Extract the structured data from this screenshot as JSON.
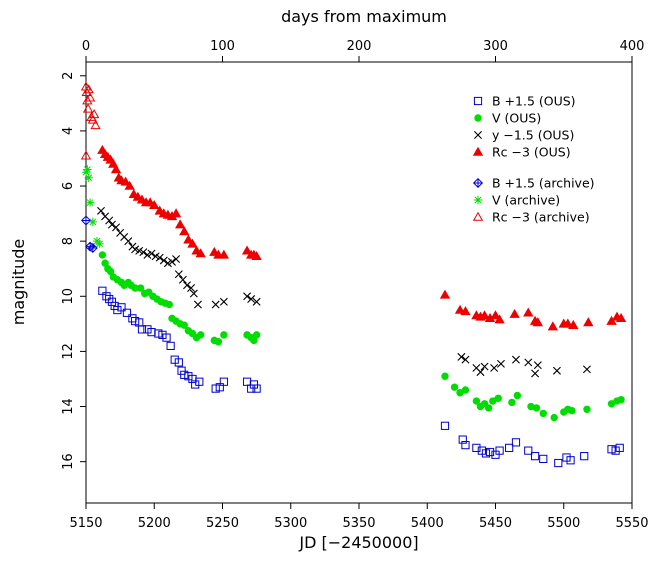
{
  "chart_data": {
    "type": "scatter",
    "xlabel": "JD [−2450000]",
    "x2label": "days from maximum",
    "ylabel": "magnitude",
    "xlim": [
      5150,
      5550
    ],
    "ylim": [
      17.5,
      1.5
    ],
    "y_inverted": true,
    "x_ticks": [
      "5150",
      "5200",
      "5250",
      "5300",
      "5350",
      "5400",
      "5450",
      "5500",
      "5550"
    ],
    "x2_ticks": [
      "0",
      "100",
      "200",
      "300",
      "400"
    ],
    "x2_offset": 5150,
    "y_ticks": [
      "2",
      "4",
      "6",
      "8",
      "10",
      "12",
      "14",
      "16"
    ],
    "grid": false,
    "legend_position": "top-right",
    "series": [
      {
        "name": "B +1.5 (OUS)",
        "marker": "square-open",
        "color": "#0000cc",
        "legend_group": 0,
        "points": [
          [
            5162,
            9.8
          ],
          [
            5165,
            10.0
          ],
          [
            5167,
            10.1
          ],
          [
            5169,
            10.2
          ],
          [
            5171,
            10.35
          ],
          [
            5173,
            10.5
          ],
          [
            5176,
            10.4
          ],
          [
            5180,
            10.6
          ],
          [
            5184,
            10.8
          ],
          [
            5186,
            10.9
          ],
          [
            5189,
            10.95
          ],
          [
            5191,
            11.2
          ],
          [
            5195,
            11.2
          ],
          [
            5198,
            11.3
          ],
          [
            5203,
            11.35
          ],
          [
            5206,
            11.4
          ],
          [
            5209,
            11.5
          ],
          [
            5212,
            11.8
          ],
          [
            5215,
            12.3
          ],
          [
            5218,
            12.4
          ],
          [
            5220,
            12.7
          ],
          [
            5222,
            12.85
          ],
          [
            5225,
            12.9
          ],
          [
            5228,
            13.0
          ],
          [
            5230,
            13.2
          ],
          [
            5233,
            13.1
          ],
          [
            5245,
            13.35
          ],
          [
            5248,
            13.3
          ],
          [
            5251,
            13.1
          ],
          [
            5268,
            13.1
          ],
          [
            5271,
            13.35
          ],
          [
            5273,
            13.2
          ],
          [
            5275,
            13.35
          ],
          [
            5413,
            14.7
          ],
          [
            5426,
            15.2
          ],
          [
            5428,
            15.4
          ],
          [
            5436,
            15.5
          ],
          [
            5440,
            15.6
          ],
          [
            5443,
            15.7
          ],
          [
            5446,
            15.65
          ],
          [
            5450,
            15.75
          ],
          [
            5453,
            15.6
          ],
          [
            5460,
            15.5
          ],
          [
            5465,
            15.3
          ],
          [
            5474,
            15.6
          ],
          [
            5479,
            15.8
          ],
          [
            5485,
            15.9
          ],
          [
            5496,
            16.05
          ],
          [
            5502,
            15.85
          ],
          [
            5505,
            15.95
          ],
          [
            5515,
            15.8
          ],
          [
            5535,
            15.55
          ],
          [
            5538,
            15.6
          ],
          [
            5541,
            15.5
          ]
        ]
      },
      {
        "name": "V (OUS)",
        "marker": "circle-filled",
        "color": "#00dd00",
        "legend_group": 0,
        "points": [
          [
            5162,
            8.5
          ],
          [
            5164,
            8.8
          ],
          [
            5166,
            9.0
          ],
          [
            5168,
            9.1
          ],
          [
            5170,
            9.3
          ],
          [
            5173,
            9.4
          ],
          [
            5176,
            9.5
          ],
          [
            5178,
            9.6
          ],
          [
            5181,
            9.5
          ],
          [
            5183,
            9.6
          ],
          [
            5186,
            9.7
          ],
          [
            5190,
            9.7
          ],
          [
            5193,
            9.9
          ],
          [
            5196,
            9.85
          ],
          [
            5199,
            10.0
          ],
          [
            5202,
            10.1
          ],
          [
            5205,
            10.2
          ],
          [
            5208,
            10.25
          ],
          [
            5211,
            10.3
          ],
          [
            5213,
            10.8
          ],
          [
            5216,
            10.9
          ],
          [
            5219,
            11.0
          ],
          [
            5222,
            11.05
          ],
          [
            5225,
            11.25
          ],
          [
            5228,
            11.35
          ],
          [
            5231,
            11.5
          ],
          [
            5234,
            11.4
          ],
          [
            5244,
            11.6
          ],
          [
            5247,
            11.65
          ],
          [
            5251,
            11.4
          ],
          [
            5268,
            11.4
          ],
          [
            5271,
            11.5
          ],
          [
            5273,
            11.6
          ],
          [
            5275,
            11.4
          ],
          [
            5413,
            12.9
          ],
          [
            5420,
            13.3
          ],
          [
            5424,
            13.5
          ],
          [
            5428,
            13.4
          ],
          [
            5436,
            13.8
          ],
          [
            5439,
            14.0
          ],
          [
            5442,
            13.9
          ],
          [
            5445,
            14.05
          ],
          [
            5448,
            13.8
          ],
          [
            5452,
            13.7
          ],
          [
            5462,
            13.85
          ],
          [
            5466,
            13.6
          ],
          [
            5476,
            14.0
          ],
          [
            5480,
            14.05
          ],
          [
            5485,
            14.25
          ],
          [
            5493,
            14.4
          ],
          [
            5500,
            14.2
          ],
          [
            5503,
            14.1
          ],
          [
            5506,
            14.15
          ],
          [
            5517,
            14.1
          ],
          [
            5535,
            13.9
          ],
          [
            5539,
            13.8
          ],
          [
            5542,
            13.75
          ]
        ]
      },
      {
        "name": "y −1.5 (OUS)",
        "marker": "x",
        "color": "#000000",
        "legend_group": 0,
        "points": [
          [
            5161,
            6.9
          ],
          [
            5164,
            7.1
          ],
          [
            5167,
            7.25
          ],
          [
            5169,
            7.4
          ],
          [
            5172,
            7.5
          ],
          [
            5175,
            7.7
          ],
          [
            5178,
            7.85
          ],
          [
            5181,
            8.0
          ],
          [
            5184,
            8.2
          ],
          [
            5186,
            8.3
          ],
          [
            5189,
            8.35
          ],
          [
            5192,
            8.4
          ],
          [
            5195,
            8.5
          ],
          [
            5198,
            8.45
          ],
          [
            5201,
            8.55
          ],
          [
            5204,
            8.6
          ],
          [
            5207,
            8.7
          ],
          [
            5210,
            8.8
          ],
          [
            5213,
            8.75
          ],
          [
            5216,
            8.65
          ],
          [
            5218,
            9.2
          ],
          [
            5221,
            9.4
          ],
          [
            5224,
            9.6
          ],
          [
            5227,
            9.7
          ],
          [
            5229,
            9.9
          ],
          [
            5232,
            10.3
          ],
          [
            5245,
            10.3
          ],
          [
            5251,
            10.2
          ],
          [
            5268,
            10.0
          ],
          [
            5271,
            10.1
          ],
          [
            5275,
            10.2
          ],
          [
            5425,
            12.2
          ],
          [
            5428,
            12.3
          ],
          [
            5436,
            12.6
          ],
          [
            5439,
            12.75
          ],
          [
            5442,
            12.55
          ],
          [
            5449,
            12.6
          ],
          [
            5454,
            12.45
          ],
          [
            5465,
            12.3
          ],
          [
            5474,
            12.4
          ],
          [
            5479,
            12.8
          ],
          [
            5481,
            12.5
          ],
          [
            5495,
            12.7
          ],
          [
            5517,
            12.65
          ]
        ]
      },
      {
        "name": "Rc −3 (OUS)",
        "marker": "triangle-filled",
        "color": "#ee0000",
        "legend_group": 0,
        "points": [
          [
            5162,
            4.7
          ],
          [
            5164,
            4.85
          ],
          [
            5166,
            4.95
          ],
          [
            5168,
            5.05
          ],
          [
            5170,
            5.2
          ],
          [
            5172,
            5.4
          ],
          [
            5174,
            5.7
          ],
          [
            5176,
            5.8
          ],
          [
            5179,
            5.85
          ],
          [
            5182,
            6.0
          ],
          [
            5185,
            6.3
          ],
          [
            5188,
            6.4
          ],
          [
            5191,
            6.5
          ],
          [
            5194,
            6.6
          ],
          [
            5197,
            6.6
          ],
          [
            5200,
            6.7
          ],
          [
            5204,
            6.9
          ],
          [
            5207,
            7.0
          ],
          [
            5210,
            7.05
          ],
          [
            5213,
            7.1
          ],
          [
            5216,
            7.0
          ],
          [
            5219,
            7.4
          ],
          [
            5222,
            7.65
          ],
          [
            5225,
            7.95
          ],
          [
            5228,
            8.1
          ],
          [
            5231,
            8.35
          ],
          [
            5234,
            8.45
          ],
          [
            5244,
            8.4
          ],
          [
            5247,
            8.5
          ],
          [
            5251,
            8.5
          ],
          [
            5268,
            8.35
          ],
          [
            5271,
            8.5
          ],
          [
            5273,
            8.5
          ],
          [
            5275,
            8.55
          ],
          [
            5413,
            9.95
          ],
          [
            5424,
            10.5
          ],
          [
            5428,
            10.55
          ],
          [
            5436,
            10.7
          ],
          [
            5439,
            10.75
          ],
          [
            5442,
            10.7
          ],
          [
            5446,
            10.8
          ],
          [
            5450,
            10.7
          ],
          [
            5453,
            10.85
          ],
          [
            5464,
            10.65
          ],
          [
            5474,
            10.6
          ],
          [
            5479,
            10.9
          ],
          [
            5481,
            10.95
          ],
          [
            5492,
            11.1
          ],
          [
            5500,
            11.0
          ],
          [
            5503,
            11.0
          ],
          [
            5507,
            11.05
          ],
          [
            5518,
            10.95
          ],
          [
            5535,
            10.9
          ],
          [
            5539,
            10.75
          ],
          [
            5542,
            10.8
          ]
        ]
      },
      {
        "name": "B +1.5 (archive)",
        "marker": "diamond-cross",
        "color": "#0000cc",
        "legend_group": 1,
        "points": [
          [
            5150,
            7.25
          ],
          [
            5153,
            8.2
          ],
          [
            5155,
            8.25
          ]
        ]
      },
      {
        "name": "V (archive)",
        "marker": "asterisk",
        "color": "#00dd00",
        "legend_group": 1,
        "points": [
          [
            5150,
            5.5
          ],
          [
            5151,
            5.4
          ],
          [
            5152,
            5.7
          ],
          [
            5153,
            6.6
          ],
          [
            5155,
            7.3
          ],
          [
            5158,
            8.0
          ],
          [
            5160,
            8.1
          ]
        ]
      },
      {
        "name": "Rc −3 (archive)",
        "marker": "triangle-open",
        "color": "#ee0000",
        "legend_group": 1,
        "points": [
          [
            5150,
            2.4
          ],
          [
            5150.5,
            2.6
          ],
          [
            5151,
            2.9
          ],
          [
            5151.5,
            3.2
          ],
          [
            5152,
            2.5
          ],
          [
            5153,
            2.8
          ],
          [
            5154,
            3.5
          ],
          [
            5155,
            3.6
          ],
          [
            5156,
            3.4
          ],
          [
            5157,
            3.8
          ],
          [
            5150,
            4.9
          ]
        ]
      }
    ]
  }
}
